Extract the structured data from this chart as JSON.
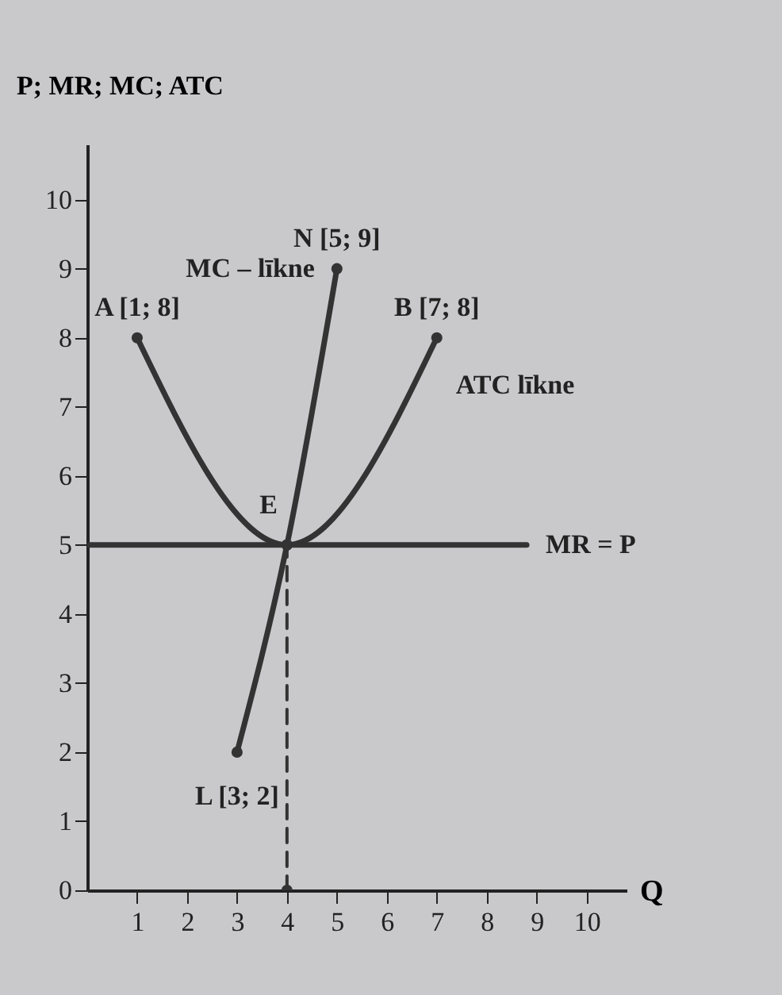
{
  "chart_data": {
    "type": "line",
    "xlabel": "Q",
    "ylabel": "P; MR; MC; ATC",
    "xlim": [
      0,
      10.8
    ],
    "ylim": [
      0,
      10.8
    ],
    "xticks": [
      1,
      2,
      3,
      4,
      5,
      6,
      7,
      8,
      9,
      10
    ],
    "yticks": [
      0,
      1,
      2,
      3,
      4,
      5,
      6,
      7,
      8,
      9,
      10
    ],
    "grid": false,
    "series": [
      {
        "name": "MC – līkne",
        "color": "#333333",
        "x": [
          3,
          4,
          5
        ],
        "values": [
          2,
          5,
          9
        ],
        "marker": "circle"
      },
      {
        "name": "ATC līkne",
        "color": "#333333",
        "x": [
          1,
          4,
          7
        ],
        "values": [
          8,
          5,
          8
        ],
        "marker": "circle"
      },
      {
        "name": "MR = P",
        "color": "#333333",
        "x": [
          0,
          8.8
        ],
        "values": [
          5,
          5
        ]
      },
      {
        "color": "#333333",
        "x": [
          4,
          4
        ],
        "values": [
          0,
          5
        ],
        "line_style": "dashed",
        "marker": "circle"
      }
    ],
    "annotations": [
      {
        "text": "A [1; 8]",
        "x": 1,
        "y": 8
      },
      {
        "text": "B [7; 8]",
        "x": 7,
        "y": 8
      },
      {
        "text": "N [5; 9]",
        "x": 5,
        "y": 9
      },
      {
        "text": "L [3; 2]",
        "x": 3,
        "y": 2
      },
      {
        "text": "E",
        "x": 4,
        "y": 5
      }
    ]
  }
}
